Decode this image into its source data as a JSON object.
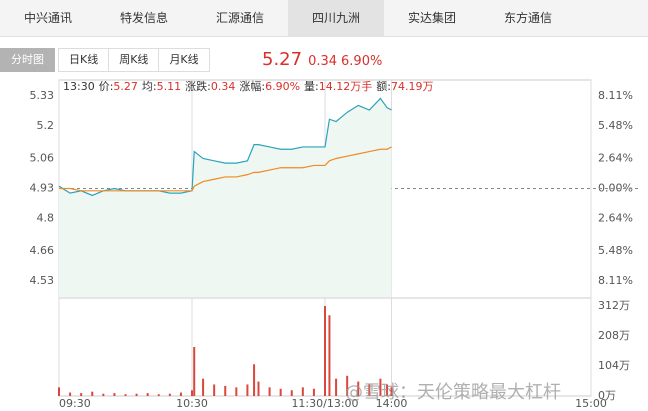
{
  "tabs": [
    "中兴通讯",
    "特发信息",
    "汇源通信",
    "四川九洲",
    "实达集团",
    "东方通信"
  ],
  "view_tabs": [
    "分时图",
    "日K线",
    "周K线",
    "月K线"
  ],
  "quote": {
    "price": "5.27",
    "change": "0.34",
    "change_pct": "6.90%"
  },
  "info": {
    "time": "13:30",
    "items": [
      {
        "label": "价:",
        "value": "5.27"
      },
      {
        "label": "均:",
        "value": "5.11"
      },
      {
        "label": "涨跌:",
        "value": "0.34"
      },
      {
        "label": "涨幅:",
        "value": "6.90%"
      },
      {
        "label": "量:",
        "value": "14.12万手"
      },
      {
        "label": "额:",
        "value": "74.19万"
      }
    ]
  },
  "watermark": "@雪球：天伦策略最大杠杆",
  "chart_data": [
    {
      "type": "line",
      "x": [
        0,
        5,
        10,
        15,
        20,
        25,
        30,
        35,
        40,
        45,
        50,
        55,
        60,
        61,
        65,
        70,
        75,
        80,
        85,
        88,
        90,
        95,
        100,
        105,
        110,
        115,
        120,
        122,
        125,
        130,
        135,
        140,
        145,
        148,
        150
      ],
      "xlim": [
        0,
        240
      ],
      "ylim": [
        4.46,
        5.4
      ],
      "yticks": [
        5.33,
        5.2,
        5.06,
        4.93,
        4.8,
        4.66,
        4.53
      ],
      "y2lim": [
        -9.53,
        9.53
      ],
      "y2ticks": [
        {
          "value": 8.11,
          "label": "8.11%"
        },
        {
          "value": 5.48,
          "label": "5.48%"
        },
        {
          "value": 2.64,
          "label": "2.64%"
        },
        {
          "value": 0,
          "label": "0.00%"
        },
        {
          "value": -2.64,
          "label": "2.64%"
        },
        {
          "value": -5.48,
          "label": "5.48%"
        },
        {
          "value": -8.11,
          "label": "8.11%"
        }
      ],
      "series": [
        {
          "color": "#2aa3bd",
          "fill": "#eef7f1",
          "values": [
            4.94,
            4.91,
            4.92,
            4.9,
            4.92,
            4.93,
            4.92,
            4.92,
            4.92,
            4.92,
            4.91,
            4.91,
            4.92,
            5.09,
            5.06,
            5.05,
            5.04,
            5.04,
            5.05,
            5.12,
            5.12,
            5.11,
            5.1,
            5.1,
            5.11,
            5.11,
            5.11,
            5.23,
            5.22,
            5.26,
            5.29,
            5.27,
            5.32,
            5.28,
            5.27
          ]
        },
        {
          "color": "#f08a24",
          "values": [
            4.93,
            4.93,
            4.92,
            4.92,
            4.92,
            4.92,
            4.92,
            4.92,
            4.92,
            4.92,
            4.92,
            4.92,
            4.92,
            4.94,
            4.96,
            4.97,
            4.98,
            4.98,
            4.99,
            5.0,
            5.0,
            5.01,
            5.02,
            5.02,
            5.02,
            5.03,
            5.03,
            5.05,
            5.06,
            5.07,
            5.08,
            5.09,
            5.1,
            5.1,
            5.11
          ]
        }
      ]
    },
    {
      "type": "bar",
      "x": [
        0,
        5,
        10,
        15,
        20,
        25,
        30,
        35,
        40,
        45,
        50,
        55,
        60,
        61,
        65,
        70,
        75,
        80,
        85,
        88,
        90,
        95,
        100,
        105,
        110,
        115,
        120,
        122,
        125,
        130,
        135,
        140,
        145,
        148,
        150
      ],
      "xlim": [
        0,
        240
      ],
      "xticks": [
        {
          "value": 0,
          "label": "09:30"
        },
        {
          "value": 60,
          "label": "10:30"
        },
        {
          "value": 120,
          "label": "11:30/13:00"
        },
        {
          "value": 150,
          "label": "14:00"
        },
        {
          "value": 240,
          "label": "15:00"
        }
      ],
      "ylim": [
        0,
        333
      ],
      "yticks": [
        {
          "value": 312,
          "label": "312万"
        },
        {
          "value": 208,
          "label": "208万"
        },
        {
          "value": 104,
          "label": "104万"
        },
        {
          "value": 0,
          "label": "0万"
        }
      ],
      "color": "#d9473d",
      "values": [
        30,
        12,
        10,
        15,
        8,
        10,
        6,
        8,
        10,
        6,
        8,
        12,
        20,
        170,
        60,
        40,
        35,
        30,
        40,
        110,
        50,
        30,
        25,
        20,
        30,
        25,
        312,
        280,
        60,
        70,
        50,
        40,
        60,
        40,
        30
      ]
    }
  ]
}
